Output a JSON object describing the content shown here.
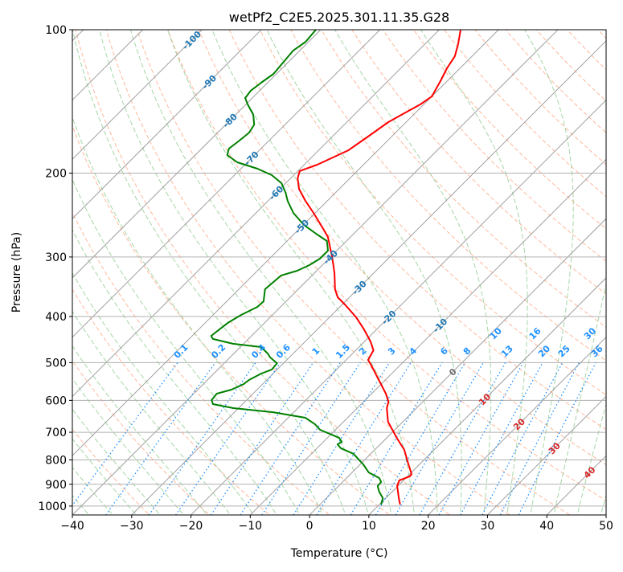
{
  "chart_data": {
    "type": "line",
    "subtype": "skew-t log-p",
    "title": "wetPf2_C2E5.2025.301.11.35.G28",
    "xlabel": "Temperature (°C)",
    "ylabel": "Pressure (hPa)",
    "xlim": [
      -40,
      50
    ],
    "ylim": [
      1050,
      100
    ],
    "x_ticks": [
      -40,
      -30,
      -20,
      -10,
      0,
      10,
      20,
      30,
      40,
      50
    ],
    "y_ticks": [
      100,
      200,
      300,
      400,
      500,
      600,
      700,
      800,
      900,
      1000
    ],
    "grid": true,
    "isotherm_labels": [
      -100,
      -90,
      -80,
      -70,
      -60,
      -50,
      -40,
      -30,
      -20,
      -10,
      0,
      10,
      20,
      30,
      40
    ],
    "mixing_ratio_labels": [
      "0.1",
      "0.2",
      "0.4",
      "0.6",
      "1",
      "1.5",
      "2",
      "3",
      "4",
      "6",
      "8",
      "10",
      "13",
      "16",
      "20",
      "25",
      "30",
      "36"
    ],
    "colors": {
      "temperature": "#ff0000",
      "dewpoint": "#008000",
      "isotherm": "#a0a0a0",
      "dry_adiabat": "#ffa07a",
      "moist_adiabat": "#8fcc8f",
      "mixing_ratio": "#1e90ff",
      "label_negative": "#1f77b4",
      "label_zero": "#707070",
      "label_positive": "#d62728"
    },
    "series": [
      {
        "name": "Temperature",
        "pressure": [
          100,
          107.2,
          113.7,
          120.5,
          127.7,
          138,
          143.5,
          149.2,
          156.3,
          168.9,
          179.1,
          192,
          198,
          205.1,
          215.8,
          228.7,
          242.4,
          258.9,
          272.4,
          300.1,
          324.4,
          350.5,
          364.4,
          378.9,
          401.5,
          425.9,
          451.3,
          471,
          493.3,
          506.8,
          537.6,
          580.9,
          603.8,
          622.8,
          665.3,
          719.3,
          762.2,
          807.8,
          856.7,
          866.2,
          883.7,
          907.9,
          962.2,
          992.5
        ],
        "temperature": [
          -56.4,
          -54.4,
          -52.9,
          -52.2,
          -51.2,
          -50,
          -50.6,
          -51.7,
          -53,
          -54.1,
          -55,
          -57.8,
          -59.7,
          -58.8,
          -56.8,
          -53.7,
          -50.3,
          -46.6,
          -43.8,
          -39.7,
          -36.6,
          -33.8,
          -32,
          -29.3,
          -25.5,
          -22.1,
          -19,
          -17,
          -16.3,
          -14.8,
          -11.7,
          -7.6,
          -5.8,
          -5,
          -2.5,
          1.7,
          5,
          7.6,
          10.3,
          10.4,
          9.3,
          9.9,
          12.2,
          13.5
        ]
      },
      {
        "name": "Dewpoint",
        "pressure": [
          100,
          106,
          110.6,
          117.3,
          123.8,
          129.2,
          134.3,
          139.1,
          143.5,
          150.9,
          158.2,
          164.4,
          170.9,
          177.7,
          183.3,
          189.8,
          195.8,
          202,
          210,
          219.9,
          228.7,
          242.4,
          256.9,
          269.2,
          277.7,
          290.9,
          302.5,
          312,
          320.6,
          328.1,
          350.5,
          371.7,
          381.9,
          397.1,
          412.5,
          425.9,
          439.3,
          445.9,
          456.4,
          463.7,
          478.3,
          487.6,
          501.3,
          517.1,
          527,
          543.6,
          554.5,
          569.7,
          580.9,
          599,
          610.9,
          622.8,
          635.3,
          652.6,
          673.3,
          691.7,
          719.3,
          733.1,
          742,
          756.1,
          776.8,
          817.5,
          850,
          873.3,
          890,
          907.9,
          932.8,
          962.2,
          992.5
        ],
        "temperature": [
          -80.8,
          -80.5,
          -81.1,
          -80.8,
          -80.5,
          -81.1,
          -81.5,
          -81.2,
          -79.7,
          -77,
          -75.2,
          -74.7,
          -75,
          -75.4,
          -74.6,
          -71.7,
          -67.2,
          -63.7,
          -60.7,
          -58.4,
          -56.7,
          -53.7,
          -49.9,
          -46,
          -43.3,
          -41.5,
          -41.5,
          -42.2,
          -43.3,
          -45.2,
          -45.6,
          -43.8,
          -43.9,
          -45.3,
          -46.2,
          -46.5,
          -46.8,
          -46,
          -41.8,
          -36.5,
          -34.3,
          -33.2,
          -31.1,
          -30.9,
          -32,
          -33,
          -33.2,
          -34.3,
          -36.1,
          -35.9,
          -35,
          -30.9,
          -23.5,
          -17.1,
          -14.4,
          -12.6,
          -8,
          -6.9,
          -7.2,
          -6,
          -2.9,
          0.5,
          2.8,
          5.5,
          6.5,
          6.6,
          7.8,
          9.5,
          10.3
        ]
      }
    ]
  }
}
